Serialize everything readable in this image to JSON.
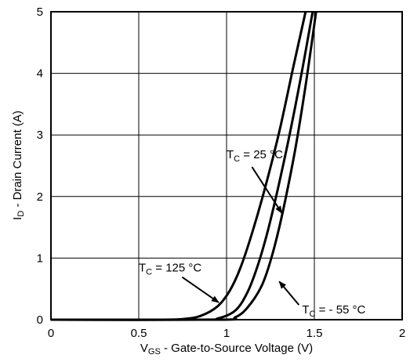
{
  "chart_data": {
    "type": "line",
    "xlabel": {
      "main": "V",
      "sub": "GS",
      "rest": " - Gate-to-Source Voltage (V)"
    },
    "ylabel": {
      "main": "I",
      "sub": "D",
      "rest": " - Drain Current (A)"
    },
    "xlim": [
      0,
      2
    ],
    "ylim": [
      0,
      5
    ],
    "x_ticks": [
      "0",
      "0.5",
      "1",
      "1.5",
      "2"
    ],
    "y_ticks": [
      "0",
      "1",
      "2",
      "3",
      "4",
      "5"
    ],
    "grid": true,
    "legend": "none",
    "series": [
      {
        "name": "TC = 125 °C",
        "x": [
          0.0,
          0.6,
          0.75,
          0.85,
          0.95,
          1.02,
          1.08,
          1.15,
          1.22,
          1.3,
          1.38,
          1.45
        ],
        "y": [
          0.0,
          0.0,
          0.01,
          0.06,
          0.22,
          0.48,
          0.85,
          1.45,
          2.15,
          3.05,
          4.1,
          5.0
        ]
      },
      {
        "name": "TC = 25 °C",
        "x": [
          0.0,
          0.85,
          0.95,
          1.05,
          1.12,
          1.18,
          1.24,
          1.31,
          1.38,
          1.44,
          1.49
        ],
        "y": [
          0.0,
          0.0,
          0.02,
          0.15,
          0.45,
          0.9,
          1.5,
          2.35,
          3.3,
          4.2,
          5.0
        ]
      },
      {
        "name": "TC = - 55 °C",
        "x": [
          0.0,
          0.95,
          1.05,
          1.12,
          1.2,
          1.26,
          1.32,
          1.39,
          1.45,
          1.51
        ],
        "y": [
          0.0,
          0.0,
          0.04,
          0.2,
          0.55,
          1.05,
          1.75,
          2.75,
          3.8,
          5.0
        ]
      }
    ],
    "annotations": [
      {
        "main": "T",
        "sub": "C",
        "rest": " = 25 °C",
        "text_at": [
          1.0,
          2.62
        ],
        "arrow_to": [
          1.315,
          1.73
        ]
      },
      {
        "main": "T",
        "sub": "C",
        "rest": " = 125 °C",
        "text_at": [
          0.5,
          0.78
        ],
        "arrow_to": [
          0.955,
          0.28
        ]
      },
      {
        "main": "T",
        "sub": "C",
        "rest": " = - 55 °C",
        "text_at": [
          1.43,
          0.1
        ],
        "arrow_to": [
          1.3,
          0.62
        ]
      }
    ]
  }
}
